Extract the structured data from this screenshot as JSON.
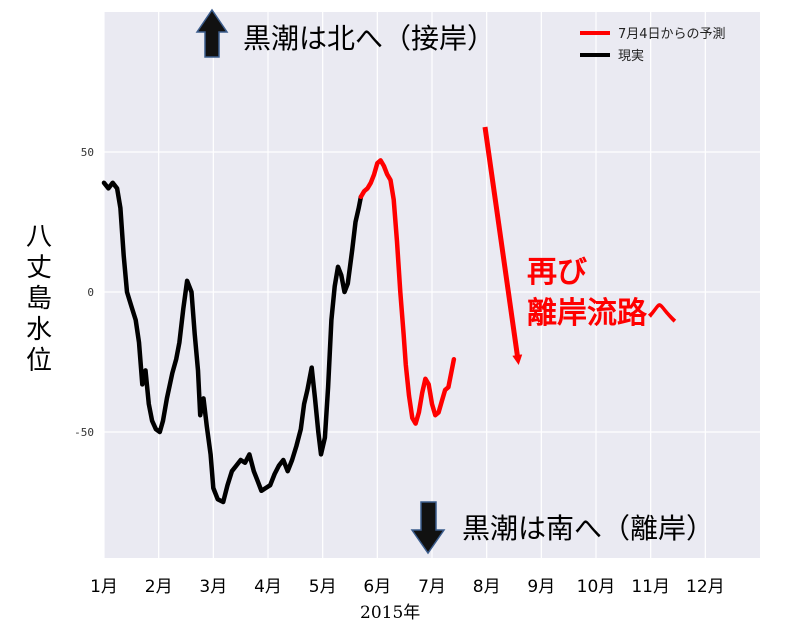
{
  "chart_data": {
    "type": "line",
    "ylabel": "八丈島水位",
    "xlabel": "2015年",
    "x_categories": [
      "1月",
      "2月",
      "3月",
      "4月",
      "5月",
      "6月",
      "7月",
      "8月",
      "9月",
      "10月",
      "11月",
      "12月"
    ],
    "yticks": [
      50,
      0,
      -50
    ],
    "ylim": [
      -95,
      100
    ],
    "xlim": [
      1,
      13
    ],
    "grid": true,
    "legend_position": "top-right",
    "annotations": {
      "north": "黒潮は北へ（接岸）",
      "south": "黒潮は南へ（離岸）",
      "again_line1": "再び",
      "again_line2": "離岸流路へ"
    },
    "series": [
      {
        "name": "現実",
        "color": "#000000",
        "points": [
          [
            1.0,
            39
          ],
          [
            1.08,
            37
          ],
          [
            1.16,
            39
          ],
          [
            1.24,
            37
          ],
          [
            1.3,
            30
          ],
          [
            1.36,
            13
          ],
          [
            1.42,
            0
          ],
          [
            1.5,
            -5
          ],
          [
            1.58,
            -10
          ],
          [
            1.64,
            -18
          ],
          [
            1.7,
            -33
          ],
          [
            1.76,
            -28
          ],
          [
            1.82,
            -40
          ],
          [
            1.88,
            -46
          ],
          [
            1.95,
            -49
          ],
          [
            2.02,
            -50
          ],
          [
            2.08,
            -46
          ],
          [
            2.15,
            -38
          ],
          [
            2.25,
            -29
          ],
          [
            2.32,
            -24
          ],
          [
            2.38,
            -18
          ],
          [
            2.45,
            -6
          ],
          [
            2.52,
            4
          ],
          [
            2.6,
            0
          ],
          [
            2.66,
            -15
          ],
          [
            2.72,
            -28
          ],
          [
            2.76,
            -44
          ],
          [
            2.82,
            -38
          ],
          [
            2.88,
            -48
          ],
          [
            2.95,
            -58
          ],
          [
            3.0,
            -70
          ],
          [
            3.08,
            -74
          ],
          [
            3.18,
            -75
          ],
          [
            3.26,
            -69
          ],
          [
            3.34,
            -64
          ],
          [
            3.42,
            -62
          ],
          [
            3.5,
            -60
          ],
          [
            3.58,
            -61
          ],
          [
            3.66,
            -58
          ],
          [
            3.74,
            -64
          ],
          [
            3.8,
            -67
          ],
          [
            3.88,
            -71
          ],
          [
            3.96,
            -70
          ],
          [
            4.04,
            -69
          ],
          [
            4.12,
            -65
          ],
          [
            4.2,
            -62
          ],
          [
            4.28,
            -60
          ],
          [
            4.36,
            -64
          ],
          [
            4.44,
            -60
          ],
          [
            4.52,
            -55
          ],
          [
            4.6,
            -49
          ],
          [
            4.66,
            -40
          ],
          [
            4.72,
            -35
          ],
          [
            4.8,
            -27
          ],
          [
            4.86,
            -38
          ],
          [
            4.92,
            -50
          ],
          [
            4.97,
            -58
          ],
          [
            5.04,
            -52
          ],
          [
            5.1,
            -34
          ],
          [
            5.16,
            -10
          ],
          [
            5.22,
            2
          ],
          [
            5.28,
            9
          ],
          [
            5.34,
            6
          ],
          [
            5.4,
            0
          ],
          [
            5.46,
            3
          ],
          [
            5.54,
            15
          ],
          [
            5.6,
            25
          ],
          [
            5.66,
            30
          ],
          [
            5.7,
            34
          ]
        ]
      },
      {
        "name": "7月4日からの予測",
        "color": "#ff0000",
        "points": [
          [
            5.7,
            34
          ],
          [
            5.76,
            36
          ],
          [
            5.82,
            37
          ],
          [
            5.88,
            39
          ],
          [
            5.94,
            42
          ],
          [
            6.0,
            46
          ],
          [
            6.06,
            47
          ],
          [
            6.12,
            45
          ],
          [
            6.18,
            42
          ],
          [
            6.24,
            40
          ],
          [
            6.3,
            33
          ],
          [
            6.36,
            18
          ],
          [
            6.42,
            0
          ],
          [
            6.48,
            -15
          ],
          [
            6.52,
            -26
          ],
          [
            6.58,
            -37
          ],
          [
            6.64,
            -45
          ],
          [
            6.7,
            -47
          ],
          [
            6.76,
            -43
          ],
          [
            6.82,
            -36
          ],
          [
            6.88,
            -31
          ],
          [
            6.94,
            -33
          ],
          [
            7.0,
            -40
          ],
          [
            7.06,
            -44
          ],
          [
            7.12,
            -43
          ],
          [
            7.18,
            -39
          ],
          [
            7.24,
            -35
          ],
          [
            7.3,
            -34
          ],
          [
            7.36,
            -28
          ],
          [
            7.4,
            -24
          ]
        ]
      }
    ]
  }
}
